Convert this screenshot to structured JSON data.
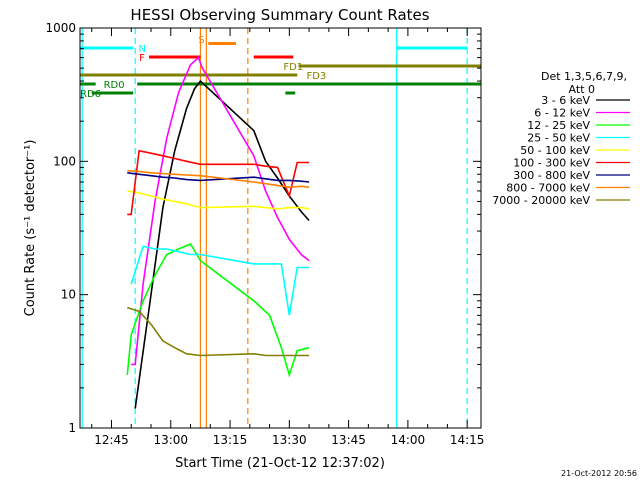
{
  "chart_data": {
    "type": "line",
    "title": "HESSI Observing Summary Count Rates",
    "xlabel": "Start Time (21-Oct-12 12:37:02)",
    "ylabel": "Count Rate (s⁻¹ detector⁻¹)",
    "y_scale": "log",
    "ylim": [
      1,
      1000
    ],
    "xlim": [
      "12:37:02",
      "14:18:30"
    ],
    "x_tick_labels": [
      "12:45",
      "13:00",
      "13:15",
      "13:30",
      "13:45",
      "14:00",
      "14:15"
    ],
    "y_tick_labels": [
      "1",
      "10",
      "100",
      "1000"
    ],
    "legend_title": [
      "Det 1,3,5,6,7,9,",
      "Att 0"
    ],
    "legend_position": "right",
    "timestamp": "21-Oct-2012 20:56",
    "series": [
      {
        "name": "3 - 6 keV",
        "color": "#000000",
        "points": [
          [
            "12:51:00",
            1.4
          ],
          [
            "12:55:00",
            10
          ],
          [
            "12:58:00",
            45
          ],
          [
            "13:01:00",
            120
          ],
          [
            "13:04:00",
            250
          ],
          [
            "13:06:00",
            350
          ],
          [
            "13:07:30",
            400
          ],
          [
            "13:21:00",
            170
          ],
          [
            "13:24:00",
            100
          ],
          [
            "13:27:00",
            75
          ],
          [
            "13:30:00",
            55
          ],
          [
            "13:33:00",
            42
          ],
          [
            "13:35:00",
            36
          ]
        ]
      },
      {
        "name": "6 - 12 keV",
        "color": "#ff00ff",
        "points": [
          [
            "12:50:00",
            3
          ],
          [
            "12:51:00",
            3
          ],
          [
            "12:53:00",
            12
          ],
          [
            "12:56:00",
            50
          ],
          [
            "12:59:00",
            150
          ],
          [
            "13:02:00",
            330
          ],
          [
            "13:05:00",
            530
          ],
          [
            "13:07:00",
            600
          ],
          [
            "13:08:00",
            500
          ],
          [
            "13:21:00",
            110
          ],
          [
            "13:24:00",
            60
          ],
          [
            "13:27:00",
            38
          ],
          [
            "13:30:00",
            26
          ],
          [
            "13:33:00",
            20
          ],
          [
            "13:35:00",
            18
          ]
        ]
      },
      {
        "name": "12 - 25 keV",
        "color": "#00ff00",
        "points": [
          [
            "12:49:00",
            2.5
          ],
          [
            "12:50:00",
            5
          ],
          [
            "12:53:00",
            9
          ],
          [
            "12:56:00",
            14
          ],
          [
            "12:59:00",
            20
          ],
          [
            "13:02:00",
            22
          ],
          [
            "13:05:00",
            24
          ],
          [
            "13:07:30",
            18
          ],
          [
            "13:21:00",
            9
          ],
          [
            "13:25:00",
            7
          ],
          [
            "13:28:00",
            4
          ],
          [
            "13:30:00",
            2.5
          ],
          [
            "13:32:00",
            3.8
          ],
          [
            "13:35:00",
            4
          ]
        ]
      },
      {
        "name": "25 - 50 keV",
        "color": "#00ffff",
        "points": [
          [
            "12:50:00",
            12
          ],
          [
            "12:53:00",
            23
          ],
          [
            "12:56:00",
            22
          ],
          [
            "12:59:00",
            22
          ],
          [
            "13:02:00",
            21
          ],
          [
            "13:05:00",
            20
          ],
          [
            "13:07:30",
            20
          ],
          [
            "13:21:00",
            17
          ],
          [
            "13:25:00",
            17
          ],
          [
            "13:28:00",
            17
          ],
          [
            "13:30:00",
            7
          ],
          [
            "13:32:00",
            16
          ],
          [
            "13:35:00",
            16
          ]
        ]
      },
      {
        "name": "50 - 100 keV",
        "color": "#ffff00",
        "points": [
          [
            "12:49:00",
            60
          ],
          [
            "12:52:00",
            58
          ],
          [
            "12:55:00",
            55
          ],
          [
            "12:58:00",
            52
          ],
          [
            "13:01:00",
            50
          ],
          [
            "13:04:00",
            48
          ],
          [
            "13:07:30",
            45
          ],
          [
            "13:21:00",
            46
          ],
          [
            "13:24:00",
            45
          ],
          [
            "13:27:00",
            44
          ],
          [
            "13:30:00",
            45
          ],
          [
            "13:33:00",
            45
          ],
          [
            "13:35:00",
            44
          ]
        ]
      },
      {
        "name": "100 - 300 keV",
        "color": "#ff0000",
        "points": [
          [
            "12:49:00",
            40
          ],
          [
            "12:50:00",
            40
          ],
          [
            "12:52:00",
            120
          ],
          [
            "12:55:00",
            115
          ],
          [
            "12:58:00",
            110
          ],
          [
            "13:01:00",
            105
          ],
          [
            "13:04:00",
            100
          ],
          [
            "13:07:30",
            95
          ],
          [
            "13:21:00",
            95
          ],
          [
            "13:24:00",
            92
          ],
          [
            "13:27:00",
            90
          ],
          [
            "13:30:00",
            55
          ],
          [
            "13:32:00",
            98
          ],
          [
            "13:35:00",
            98
          ]
        ]
      },
      {
        "name": "300 - 800 keV",
        "color": "#000080",
        "points": [
          [
            "12:49:00",
            82
          ],
          [
            "12:52:00",
            80
          ],
          [
            "12:55:00",
            78
          ],
          [
            "12:58:00",
            76
          ],
          [
            "13:01:00",
            75
          ],
          [
            "13:04:00",
            73
          ],
          [
            "13:07:30",
            72
          ],
          [
            "13:21:00",
            76
          ],
          [
            "13:24:00",
            74
          ],
          [
            "13:27:00",
            72
          ],
          [
            "13:30:00",
            72
          ],
          [
            "13:33:00",
            71
          ],
          [
            "13:35:00",
            70
          ]
        ]
      },
      {
        "name": "800 - 7000 keV",
        "color": "#ff8000",
        "points": [
          [
            "12:49:00",
            85
          ],
          [
            "12:52:00",
            84
          ],
          [
            "12:55:00",
            82
          ],
          [
            "12:58:00",
            81
          ],
          [
            "13:01:00",
            80
          ],
          [
            "13:04:00",
            79
          ],
          [
            "13:07:30",
            78
          ],
          [
            "13:21:00",
            70
          ],
          [
            "13:24:00",
            68
          ],
          [
            "13:27:00",
            66
          ],
          [
            "13:30:00",
            64
          ],
          [
            "13:33:00",
            65
          ],
          [
            "13:35:00",
            64
          ]
        ]
      },
      {
        "name": "7000 - 20000 keV",
        "color": "#808000",
        "points": [
          [
            "12:49:00",
            8
          ],
          [
            "12:52:00",
            7.5
          ],
          [
            "12:55:00",
            6
          ],
          [
            "12:58:00",
            4.5
          ],
          [
            "13:01:00",
            4
          ],
          [
            "13:04:00",
            3.6
          ],
          [
            "13:07:30",
            3.5
          ],
          [
            "13:21:00",
            3.6
          ],
          [
            "13:24:00",
            3.5
          ],
          [
            "13:27:00",
            3.5
          ],
          [
            "13:30:00",
            3.5
          ],
          [
            "13:33:00",
            3.5
          ],
          [
            "13:35:00",
            3.5
          ]
        ]
      }
    ],
    "vertical_lines": [
      {
        "time": "12:37:35",
        "color": "#00ffff",
        "style": "solid"
      },
      {
        "time": "12:51:00",
        "color": "#00ffff",
        "style": "dashed"
      },
      {
        "time": "13:07:30",
        "color": "#ff8000",
        "style": "solid"
      },
      {
        "time": "13:09:00",
        "color": "#ff8000",
        "style": "solid"
      },
      {
        "time": "13:19:30",
        "color": "#ff8000",
        "style": "dashed"
      },
      {
        "time": "13:57:10",
        "color": "#00ffff",
        "style": "solid"
      },
      {
        "time": "14:15:00",
        "color": "#00ffff",
        "style": "dashed"
      }
    ],
    "status_bars": [
      {
        "label": "N",
        "color": "#00ffff",
        "label_time": "12:51:50",
        "label_row": 0,
        "segments": [
          [
            "12:37:02",
            "12:50:30",
            0
          ],
          [
            "13:57:10",
            "14:15:00",
            0
          ]
        ]
      },
      {
        "label": "S",
        "color": "#ff8000",
        "label_time": "13:07:00",
        "label_row": -1,
        "segments": [
          [
            "13:09:30",
            "13:16:30",
            -0.5
          ]
        ]
      },
      {
        "label": "F",
        "color": "#ff0000",
        "label_time": "12:52:00",
        "label_row": 1,
        "segments": [
          [
            "12:54:30",
            "13:07:30",
            1
          ],
          [
            "13:21:00",
            "13:31:00",
            1
          ]
        ]
      },
      {
        "label": "FD1",
        "color": "#808000",
        "label_time": "13:28:30",
        "label_row": 2,
        "segments": [
          [
            "13:32:20",
            "14:18:30",
            2
          ]
        ]
      },
      {
        "label": "FD3",
        "color": "#808000",
        "label_time": "13:34:20",
        "label_row": 3,
        "segments": [
          [
            "12:37:02",
            "13:32:00",
            3
          ]
        ]
      },
      {
        "label": "RD0",
        "color": "#008000",
        "label_time": "12:43:00",
        "label_row": 4,
        "segments": [
          [
            "12:37:02",
            "12:41:00",
            4
          ],
          [
            "12:51:30",
            "14:18:30",
            4
          ]
        ]
      },
      {
        "label": "RD6",
        "color": "#008000",
        "label_time": "12:37:02",
        "label_row": 5,
        "segments": [
          [
            "12:40:00",
            "12:50:30",
            5
          ],
          [
            "13:29:00",
            "13:31:30",
            5
          ]
        ]
      }
    ]
  }
}
